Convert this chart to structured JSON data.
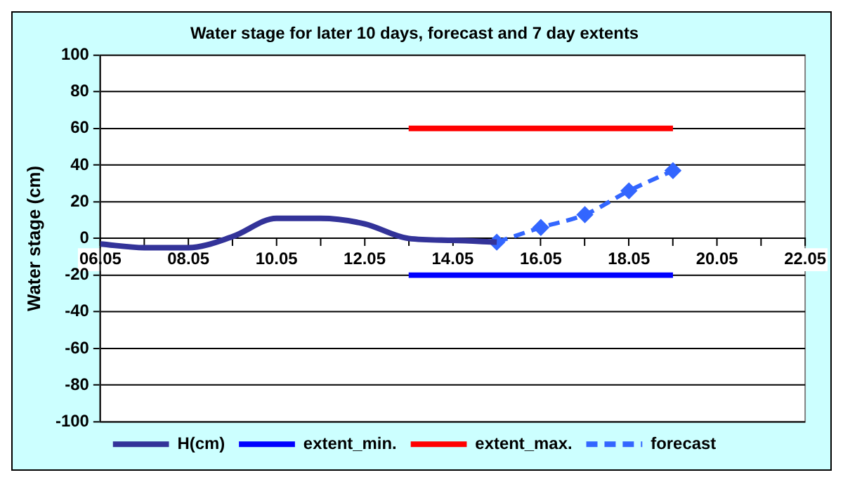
{
  "chart_data": {
    "type": "line",
    "title": "Water stage for later 10 days, forecast and 7 day extents",
    "ylabel": "Water stage (cm)",
    "xlim": [
      "--05-06",
      "--05-22"
    ],
    "xticks": [
      {
        "value": "--05-06",
        "label": "06.05"
      },
      {
        "value": "--05-07",
        "label": null
      },
      {
        "value": "--05-08",
        "label": "08.05"
      },
      {
        "value": "--05-09",
        "label": null
      },
      {
        "value": "--05-10",
        "label": "10.05"
      },
      {
        "value": "--05-11",
        "label": null
      },
      {
        "value": "--05-12",
        "label": "12.05"
      },
      {
        "value": "--05-13",
        "label": null
      },
      {
        "value": "--05-14",
        "label": "14.05"
      },
      {
        "value": "--05-15",
        "label": null
      },
      {
        "value": "--05-16",
        "label": "16.05"
      },
      {
        "value": "--05-17",
        "label": null
      },
      {
        "value": "--05-18",
        "label": "18.05"
      },
      {
        "value": "--05-19",
        "label": null
      },
      {
        "value": "--05-20",
        "label": "20.05"
      },
      {
        "value": "--05-21",
        "label": null
      },
      {
        "value": "--05-22",
        "label": "22.05"
      }
    ],
    "ylim": [
      -100,
      100
    ],
    "yticks": [
      -100,
      -80,
      -60,
      -40,
      -20,
      0,
      20,
      40,
      60,
      80,
      100
    ],
    "grid": "y",
    "legend": "bottom",
    "series": [
      {
        "name": "H(cm)",
        "color": "#333399",
        "marker": "none",
        "line_style": "solid",
        "x": [
          "--05-06",
          "--05-07",
          "--05-08",
          "--05-09",
          "--05-10",
          "--05-11",
          "--05-12",
          "--05-13",
          "--05-14",
          "--05-15"
        ],
        "values": [
          -3,
          -5,
          -5,
          1,
          11,
          11,
          8,
          0,
          -1,
          -2
        ]
      },
      {
        "name": "extent_min.",
        "color": "#0000ff",
        "marker": "none",
        "line_style": "solid",
        "x": [
          "--05-13",
          "--05-19"
        ],
        "values": [
          -20,
          -20
        ]
      },
      {
        "name": "extent_max.",
        "color": "#ff0000",
        "marker": "none",
        "line_style": "solid",
        "x": [
          "--05-13",
          "--05-19"
        ],
        "values": [
          60,
          60
        ]
      },
      {
        "name": "forecast",
        "color": "#3366ff",
        "marker": "diamond",
        "line_style": "dashed",
        "x": [
          "--05-15",
          "--05-16",
          "--05-17",
          "--05-18",
          "--05-19"
        ],
        "values": [
          -2,
          6,
          13,
          26,
          37
        ]
      }
    ]
  }
}
